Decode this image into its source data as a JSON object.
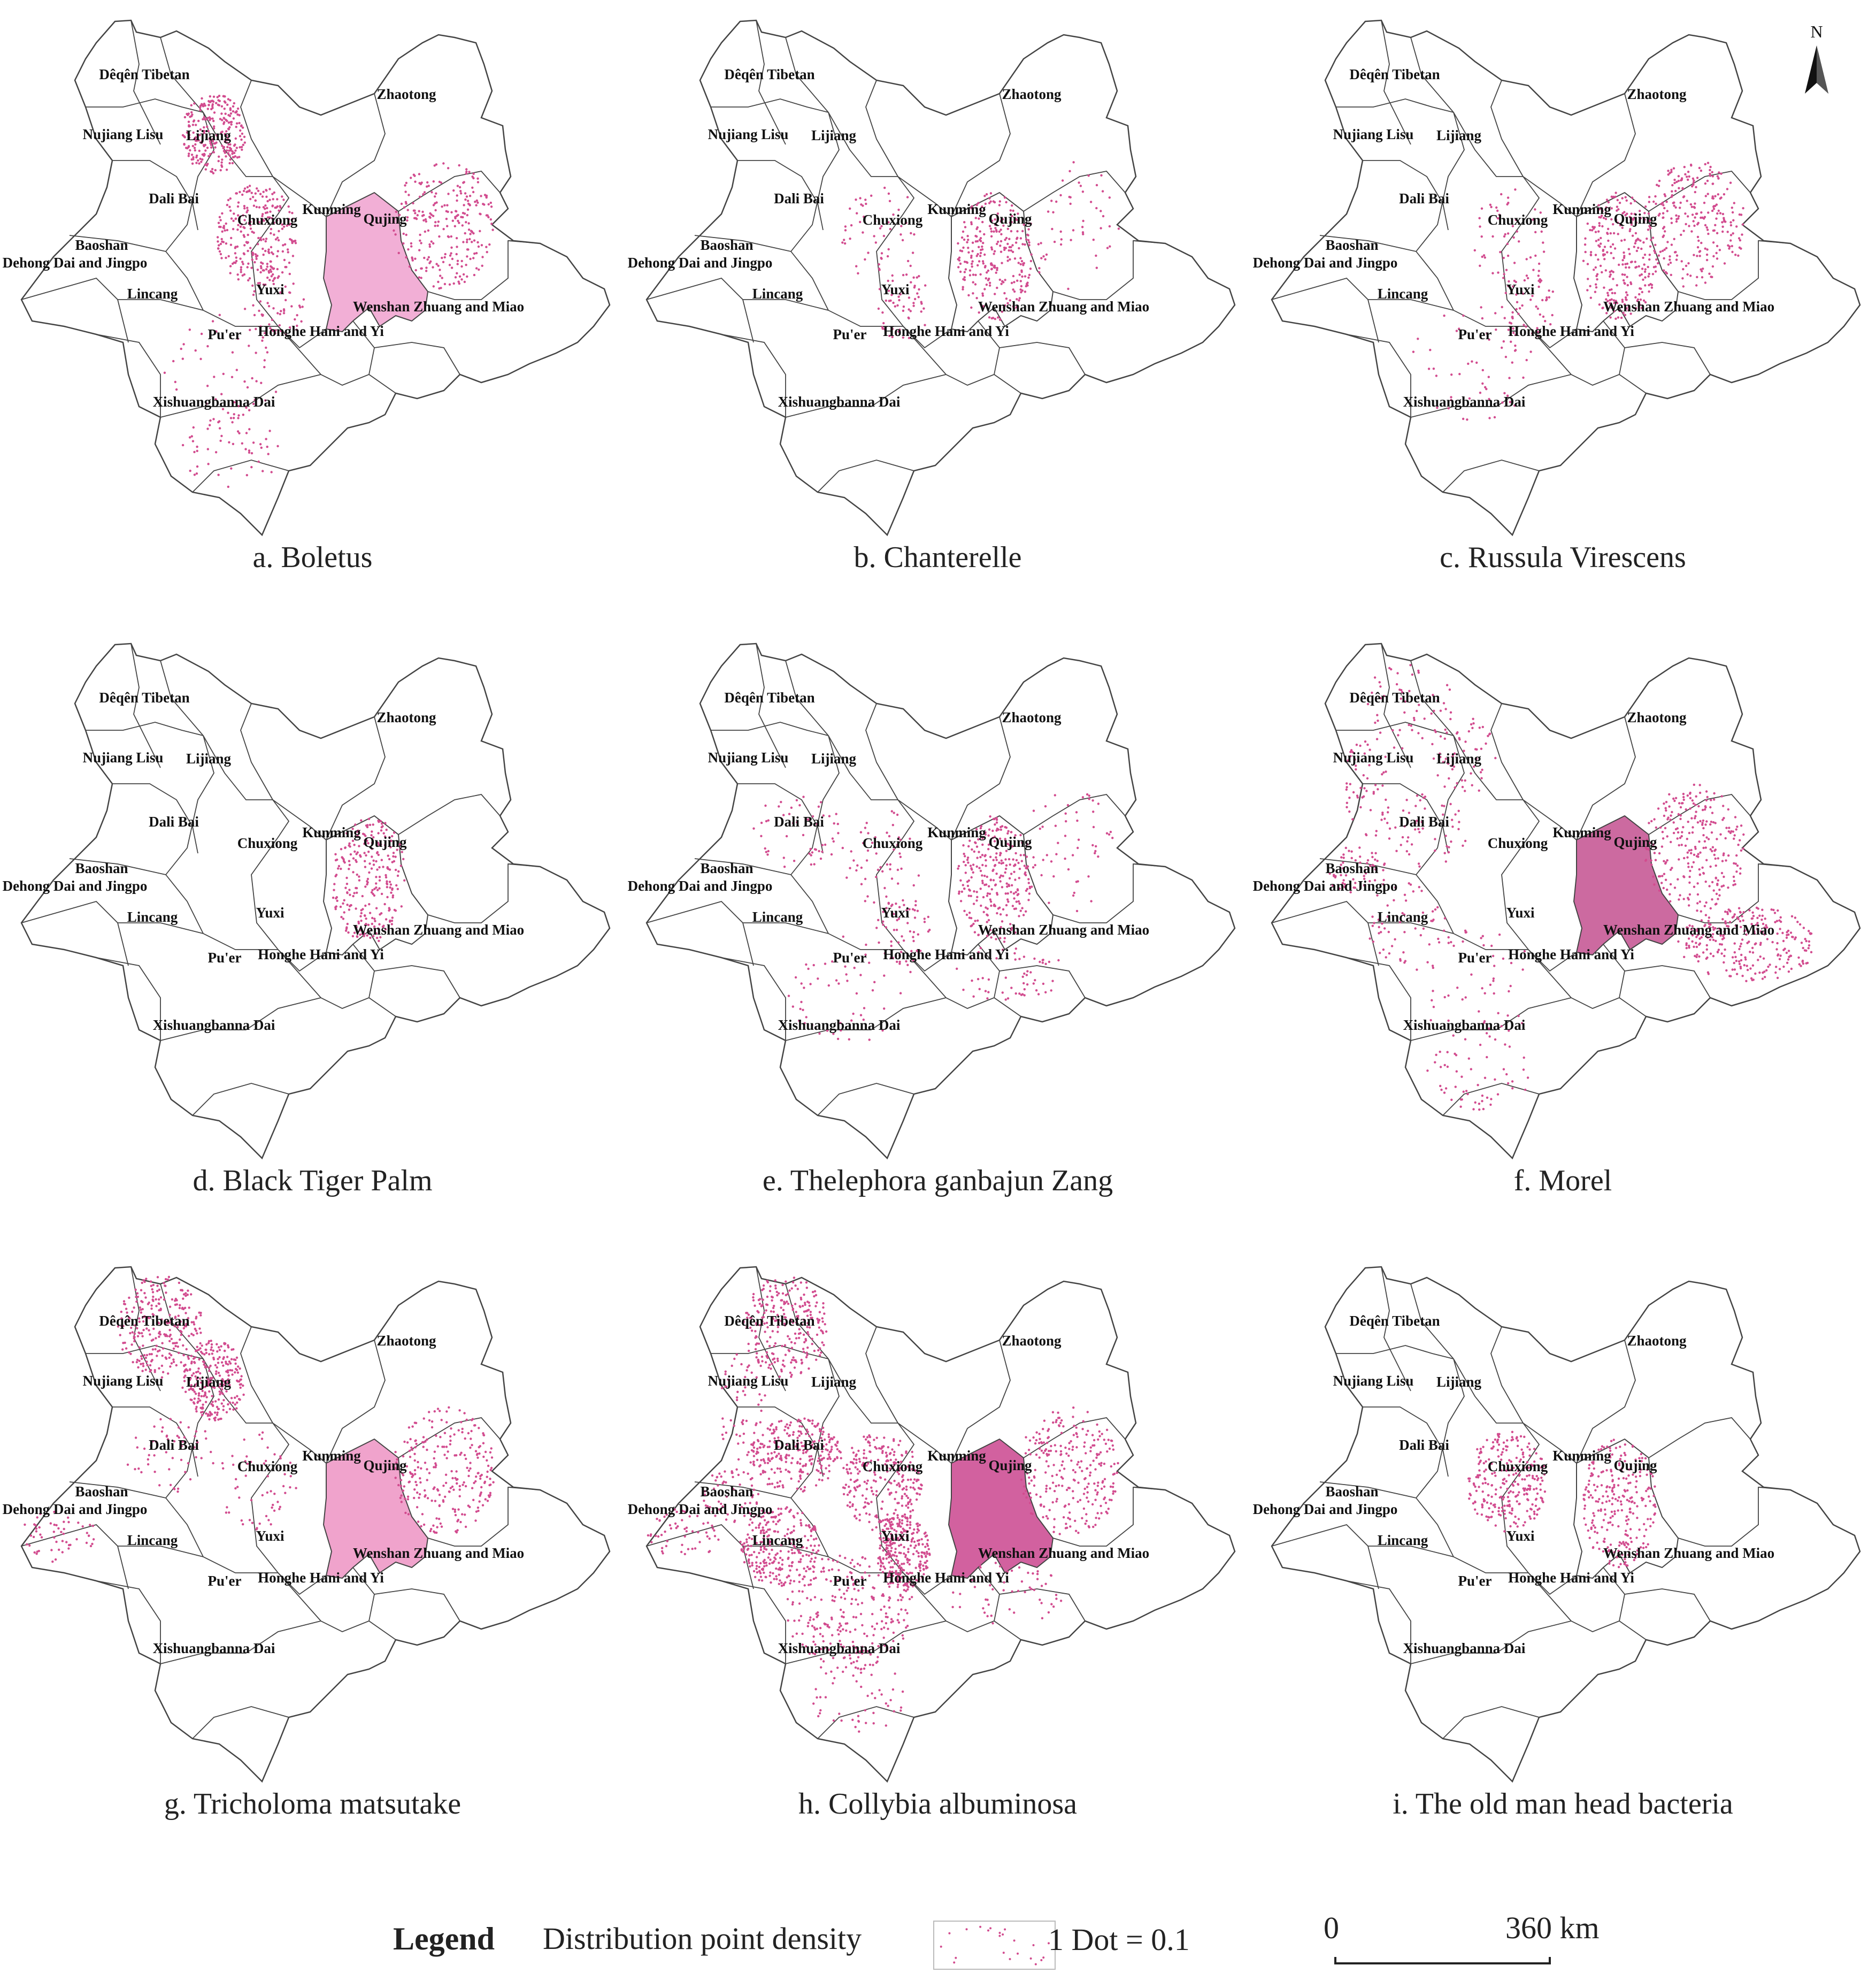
{
  "figure": {
    "map_region": "Yunnan",
    "colors": {
      "boundary": "#444444",
      "dot": "#d24c8f",
      "fill_light": "#f2b7d9",
      "fill_mid": "#e57ab3",
      "fill_dark": "#cc5f97"
    }
  },
  "place_labels": {
    "deqen": "Dêqên Tibetan",
    "zhaotong": "Zhaotong",
    "nujiang": "Nujiang Lisu",
    "lijiang": "Lijiang",
    "dali": "Dali Bai",
    "chuxiong": "Chuxiong",
    "kunming": "Kunming",
    "qujing": "Qujing",
    "baoshan": "Baoshan",
    "dehong": "Dehong Dai and Jingpo",
    "lincang": "Lincang",
    "yuxi": "Yuxi",
    "wenshan": "Wenshan Zhuang and Miao",
    "puer": "Pu'er",
    "honghe": "Honghe Hani and Yi",
    "xishuangbanna": "Xishuangbanna Dai"
  },
  "panels": [
    {
      "caption": "a. Boletus",
      "shaded": "Kunming",
      "fill_color": "#f2afd6",
      "dense_regions": [
        "Chuxiong",
        "Qujing",
        "Lijiang"
      ],
      "sparse_regions": [
        "Pu'er",
        "Xishuangbanna Dai",
        "Yuxi"
      ]
    },
    {
      "caption": "b. Chanterelle",
      "shaded": null,
      "fill_color": null,
      "dense_regions": [
        "Kunming"
      ],
      "sparse_regions": [
        "Chuxiong",
        "Qujing",
        "Yuxi"
      ]
    },
    {
      "caption": "c. Russula Virescens",
      "shaded": null,
      "fill_color": null,
      "dense_regions": [
        "Qujing",
        "Kunming"
      ],
      "sparse_regions": [
        "Chuxiong",
        "Yuxi",
        "Pu'er"
      ]
    },
    {
      "caption": "d. Black Tiger Palm",
      "shaded": null,
      "fill_color": null,
      "dense_regions": [
        "Kunming"
      ],
      "sparse_regions": []
    },
    {
      "caption": "e. Thelephora ganbajun Zang",
      "shaded": null,
      "fill_color": null,
      "dense_regions": [
        "Kunming"
      ],
      "sparse_regions": [
        "Chuxiong",
        "Qujing",
        "Yuxi",
        "Pu'er",
        "Honghe Hani and Yi",
        "Dali Bai"
      ]
    },
    {
      "caption": "f. Morel",
      "shaded": "Kunming",
      "fill_color": "#cc6aa0",
      "dense_regions": [
        "Wenshan Zhuang and Miao",
        "Qujing"
      ],
      "sparse_regions": [
        "Dêqên Tibetan",
        "Lijiang",
        "Dali Bai",
        "Nujiang Lisu",
        "Pu'er",
        "Xishuangbanna Dai",
        "Lincang",
        "Baoshan"
      ]
    },
    {
      "caption": "g. Tricholoma matsutake",
      "shaded": "Kunming",
      "fill_color": "#f0a3cc",
      "dense_regions": [
        "Dêqên Tibetan",
        "Lijiang",
        "Qujing"
      ],
      "sparse_regions": [
        "Dali Bai",
        "Dehong Dai and Jingpo",
        "Chuxiong"
      ]
    },
    {
      "caption": "h. Collybia albuminosa",
      "shaded": "Kunming",
      "fill_color": "#d2619f",
      "dense_regions": [
        "Qujing",
        "Chuxiong",
        "Yuxi",
        "Pu'er",
        "Lincang",
        "Dêqên Tibetan",
        "Dali Bai"
      ],
      "sparse_regions": [
        "Baoshan",
        "Dehong Dai and Jingpo",
        "Xishuangbanna Dai",
        "Nujiang Lisu",
        "Honghe Hani and Yi"
      ]
    },
    {
      "caption": "i. The old man head bacteria",
      "shaded": null,
      "fill_color": null,
      "dense_regions": [
        "Chuxiong",
        "Kunming"
      ],
      "sparse_regions": []
    }
  ],
  "north_arrow": {
    "label": "N"
  },
  "legend": {
    "title": "Legend",
    "label": "Distribution point density",
    "dot_value": "1 Dot = 0.1"
  },
  "scale_bar": {
    "start": "0",
    "end": "360 km"
  }
}
